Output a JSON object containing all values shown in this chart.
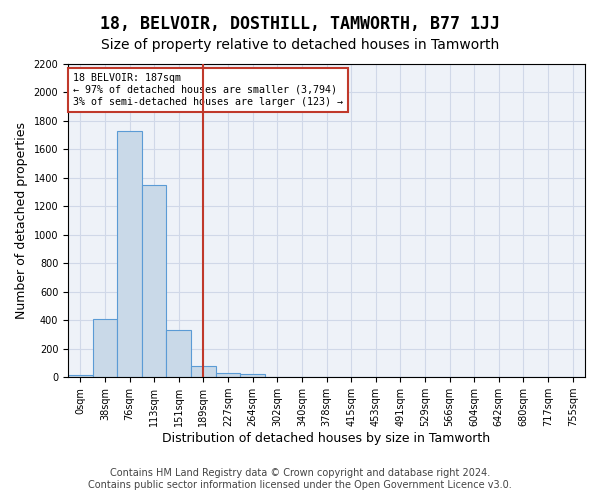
{
  "title": "18, BELVOIR, DOSTHILL, TAMWORTH, B77 1JJ",
  "subtitle": "Size of property relative to detached houses in Tamworth",
  "xlabel": "Distribution of detached houses by size in Tamworth",
  "ylabel": "Number of detached properties",
  "bar_values": [
    15,
    410,
    1730,
    1350,
    335,
    80,
    30,
    20,
    0,
    0,
    0,
    0,
    0,
    0,
    0,
    0,
    0,
    0,
    0,
    0,
    0
  ],
  "bar_labels": [
    "0sqm",
    "38sqm",
    "76sqm",
    "113sqm",
    "151sqm",
    "189sqm",
    "227sqm",
    "264sqm",
    "302sqm",
    "340sqm",
    "378sqm",
    "415sqm",
    "453sqm",
    "491sqm",
    "529sqm",
    "566sqm",
    "604sqm",
    "642sqm",
    "680sqm",
    "717sqm",
    "755sqm"
  ],
  "bar_color": "#c9d9e8",
  "bar_edgecolor": "#5b9bd5",
  "grid_color": "#d0d8e8",
  "background_color": "#eef2f8",
  "vline_x": 5,
  "vline_color": "#c0392b",
  "annotation_title": "18 BELVOIR: 187sqm",
  "annotation_line1": "← 97% of detached houses are smaller (3,794)",
  "annotation_line2": "3% of semi-detached houses are larger (123) →",
  "annotation_box_color": "#c0392b",
  "ylim": [
    0,
    2200
  ],
  "yticks": [
    0,
    200,
    400,
    600,
    800,
    1000,
    1200,
    1400,
    1600,
    1800,
    2000,
    2200
  ],
  "footer1": "Contains HM Land Registry data © Crown copyright and database right 2024.",
  "footer2": "Contains public sector information licensed under the Open Government Licence v3.0.",
  "title_fontsize": 12,
  "subtitle_fontsize": 10,
  "tick_fontsize": 7,
  "ylabel_fontsize": 9,
  "xlabel_fontsize": 9,
  "footer_fontsize": 7
}
